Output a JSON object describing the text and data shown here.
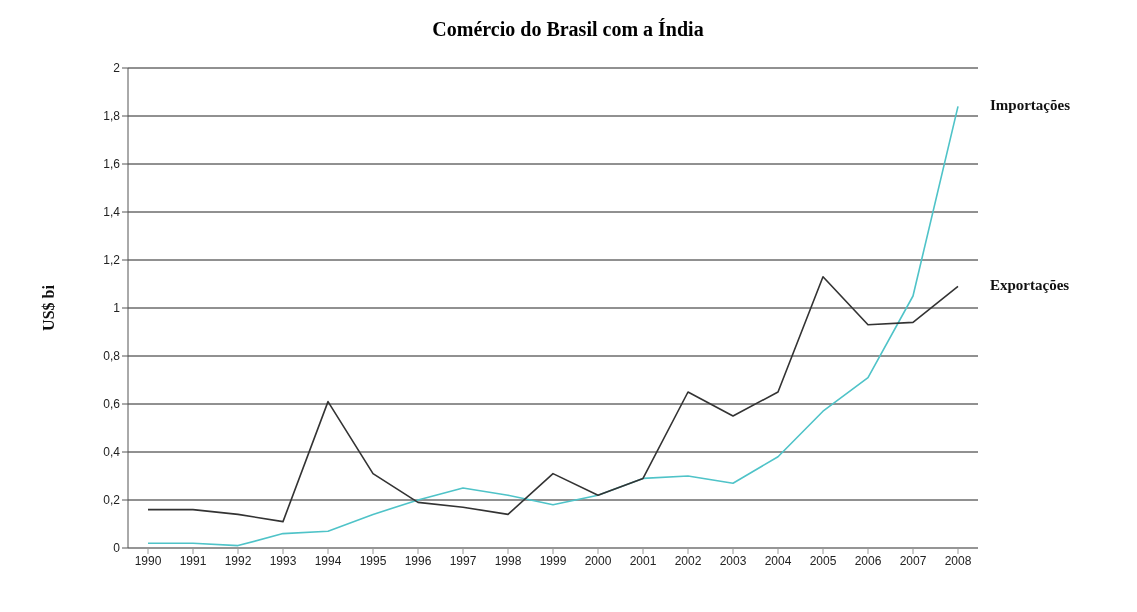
{
  "chart_data": {
    "type": "line",
    "title": "Comércio do Brasil com a Índia",
    "ylabel": "US$ bi",
    "categories": [
      "1990",
      "1991",
      "1992",
      "1993",
      "1994",
      "1995",
      "1996",
      "1997",
      "1998",
      "1999",
      "2000",
      "2001",
      "2002",
      "2003",
      "2004",
      "2005",
      "2006",
      "2007",
      "2008"
    ],
    "series": [
      {
        "name": "Importações",
        "color": "#4fc3c8",
        "values": [
          0.02,
          0.02,
          0.01,
          0.06,
          0.07,
          0.14,
          0.2,
          0.25,
          0.22,
          0.18,
          0.22,
          0.29,
          0.3,
          0.27,
          0.38,
          0.57,
          0.71,
          1.05,
          1.84
        ]
      },
      {
        "name": "Exportações",
        "color": "#333333",
        "values": [
          0.16,
          0.16,
          0.14,
          0.11,
          0.61,
          0.31,
          0.19,
          0.17,
          0.14,
          0.31,
          0.22,
          0.29,
          0.65,
          0.55,
          0.65,
          1.13,
          0.93,
          0.94,
          1.09
        ]
      }
    ],
    "ylim": [
      0,
      2
    ],
    "yticks": [
      0,
      {
        "value": 0.2,
        "label": "0,2"
      },
      {
        "value": 0.4,
        "label": "0,4"
      },
      {
        "value": 0.6,
        "label": "0,6"
      },
      {
        "value": 0.8,
        "label": "0,8"
      },
      1,
      {
        "value": 1.2,
        "label": "1,2"
      },
      {
        "value": 1.4,
        "label": "1,4"
      },
      {
        "value": 1.6,
        "label": "1,6"
      },
      {
        "value": 1.8,
        "label": "1,8"
      },
      2
    ],
    "grid": "y",
    "marker": "none",
    "line_style": "solid",
    "legend": false
  }
}
